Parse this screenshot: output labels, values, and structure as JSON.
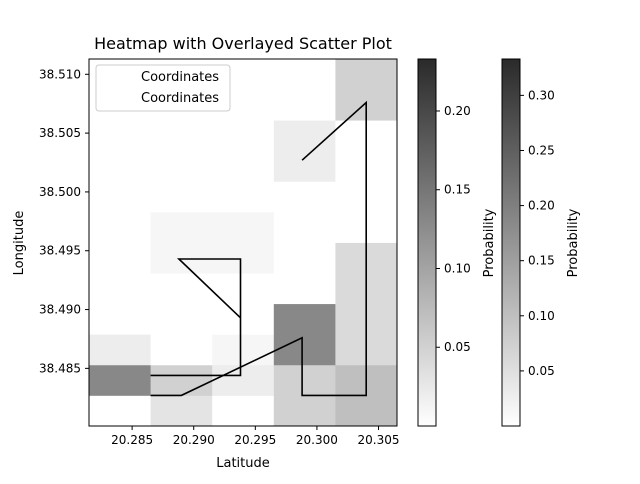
{
  "chart_data": {
    "type": "heatmap",
    "title": "Heatmap with Overlayed Scatter Plot",
    "xlabel": "Latitude",
    "ylabel": "Longitude",
    "xlim": [
      20.2815,
      20.3065
    ],
    "ylim": [
      38.4801,
      38.5113
    ],
    "x_ticks": [
      20.285,
      20.29,
      20.295,
      20.3,
      20.305
    ],
    "x_tick_labels": [
      "20.285",
      "20.290",
      "20.295",
      "20.300",
      "20.305"
    ],
    "y_ticks": [
      38.485,
      38.49,
      38.495,
      38.5,
      38.505,
      38.51
    ],
    "y_tick_labels": [
      "38.485",
      "38.490",
      "38.495",
      "38.500",
      "38.505",
      "38.510"
    ],
    "grid": false,
    "legend_position": "upper-left",
    "legend": [
      "Coordinates",
      "Coordinates"
    ],
    "heatmap": {
      "x_edges": [
        20.2815,
        20.2865,
        20.2915,
        20.2965,
        20.3015,
        20.3065
      ],
      "y_edges": [
        38.4801,
        38.4827,
        38.4853,
        38.4879,
        38.4905,
        38.4931,
        38.4957,
        38.4983,
        38.5009,
        38.5035,
        38.5061,
        38.5087,
        38.5113
      ],
      "values": [
        [
          0.0,
          0.03,
          0.0,
          0.05,
          0.07
        ],
        [
          0.13,
          0.05,
          0.02,
          0.05,
          0.07
        ],
        [
          0.02,
          0.0,
          0.01,
          0.13,
          0.04
        ],
        [
          0.0,
          0.0,
          0.0,
          0.13,
          0.04
        ],
        [
          0.0,
          0.0,
          0.0,
          0.0,
          0.04
        ],
        [
          0.0,
          0.01,
          0.01,
          0.0,
          0.04
        ],
        [
          0.0,
          0.01,
          0.01,
          0.0,
          0.0
        ],
        [
          0.0,
          0.0,
          0.0,
          0.0,
          0.0
        ],
        [
          0.0,
          0.0,
          0.0,
          0.02,
          0.0
        ],
        [
          0.0,
          0.0,
          0.0,
          0.02,
          0.0
        ],
        [
          0.0,
          0.0,
          0.0,
          0.0,
          0.05
        ],
        [
          0.0,
          0.0,
          0.0,
          0.0,
          0.05
        ]
      ]
    },
    "series": [
      {
        "x": [
          20.2865,
          20.2938,
          20.2938,
          20.2888,
          20.2938,
          20.2938,
          20.2865
        ],
        "y": [
          38.4844,
          38.4844,
          38.4943,
          38.4943,
          38.4893,
          38.4844,
          38.4844
        ]
      },
      {
        "x": [
          20.2865,
          20.289,
          20.2988,
          20.2988,
          20.304,
          20.304,
          20.2988
        ],
        "y": [
          38.4827,
          38.4827,
          38.4876,
          38.4827,
          38.4827,
          38.5076,
          38.5027
        ]
      }
    ],
    "colorbars": [
      {
        "label": "Probability",
        "range": [
          0.0,
          0.233
        ],
        "ticks": [
          0.05,
          0.1,
          0.15,
          0.2
        ],
        "tick_labels": [
          "0.05",
          "0.10",
          "0.15",
          "0.20"
        ]
      },
      {
        "label": "Probability",
        "range": [
          0.0,
          0.333
        ],
        "ticks": [
          0.05,
          0.1,
          0.15,
          0.2,
          0.25,
          0.3
        ],
        "tick_labels": [
          "0.05",
          "0.10",
          "0.15",
          "0.20",
          "0.25",
          "0.30"
        ]
      }
    ]
  }
}
